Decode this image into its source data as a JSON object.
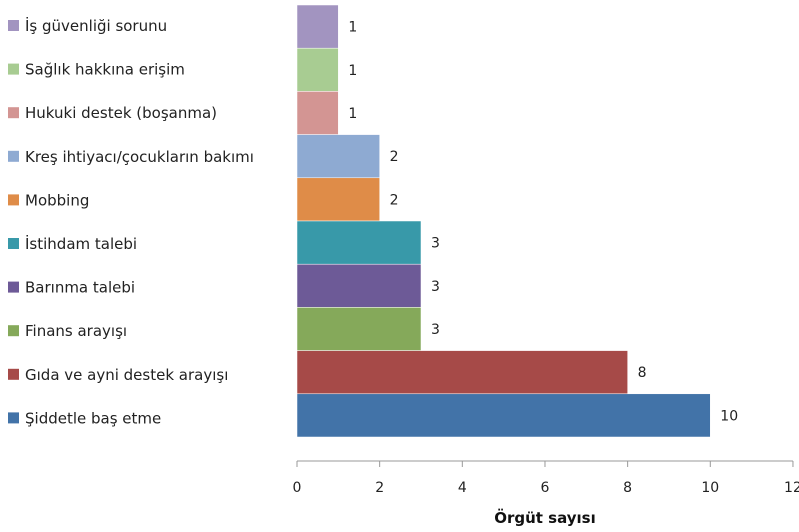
{
  "chart_data": {
    "type": "bar",
    "orientation": "horizontal",
    "xlabel": "Örgüt sayısı",
    "xlim": [
      0,
      12
    ],
    "xticks": [
      0,
      2,
      4,
      6,
      8,
      10,
      12
    ],
    "legend_position": "left",
    "grid": false,
    "categories": [
      "İş güvenliği sorunu",
      "Sağlık hakkına erişim",
      "Hukuki destek (boşanma)",
      "Kreş ihtiyacı/çocukların bakımı",
      "Mobbing",
      "İstihdam talebi",
      "Barınma talebi",
      "Finans arayışı",
      "Gıda ve ayni destek arayışı",
      "Şiddetle baş etme"
    ],
    "values": [
      1,
      1,
      1,
      2,
      2,
      3,
      3,
      3,
      8,
      10
    ],
    "colors": [
      "#a294c0",
      "#a8cc92",
      "#d39593",
      "#8eaad2",
      "#df8c48",
      "#3899a9",
      "#6d5a97",
      "#85a95a",
      "#a64a48",
      "#4273a8"
    ]
  }
}
